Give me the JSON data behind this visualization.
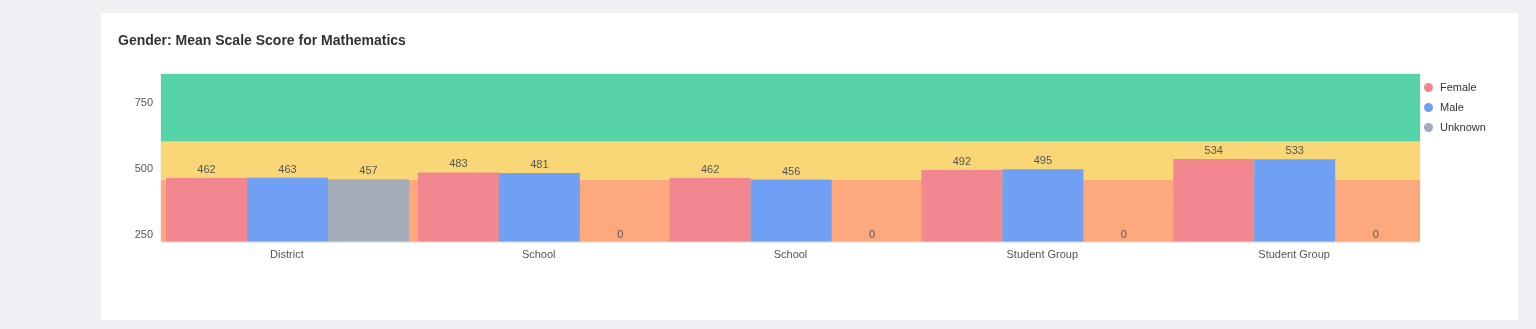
{
  "chart_data": {
    "type": "bar",
    "title": "Gender: Mean Scale Score for Mathematics",
    "categories": [
      "District",
      "School",
      "School",
      "Student Group",
      "Student Group"
    ],
    "series": [
      {
        "name": "Female",
        "color": "#f2878f",
        "values": [
          462,
          483,
          462,
          492,
          534
        ]
      },
      {
        "name": "Male",
        "color": "#6fa0f3",
        "values": [
          463,
          481,
          456,
          495,
          533
        ]
      },
      {
        "name": "Unknown",
        "color": "#a3acb9",
        "values": [
          457,
          null,
          null,
          null,
          null
        ],
        "value_labels": [
          "457",
          "0",
          "0",
          "0",
          "0"
        ]
      }
    ],
    "bands": [
      {
        "axis": "y",
        "from": 220,
        "to": 455,
        "color": "#fda97d"
      },
      {
        "axis": "y",
        "from": 455,
        "to": 600,
        "color": "#fad776"
      },
      {
        "axis": "y",
        "from": 600,
        "to": 855,
        "color": "#57d3a8"
      }
    ],
    "ylim": [
      220,
      855
    ],
    "yticks": [
      250,
      500,
      750
    ],
    "grid": true,
    "data_labels": true,
    "legend": "top right"
  }
}
